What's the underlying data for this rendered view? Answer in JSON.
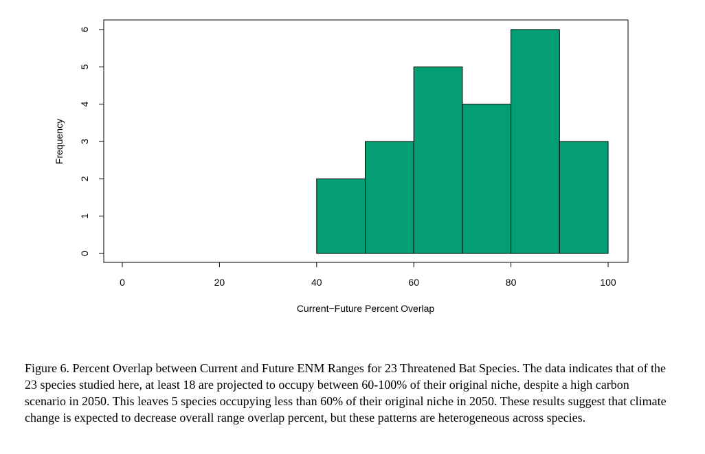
{
  "chart_data": {
    "type": "bar",
    "subtype": "histogram",
    "bins": [
      [
        40,
        50
      ],
      [
        50,
        60
      ],
      [
        60,
        70
      ],
      [
        70,
        80
      ],
      [
        80,
        90
      ],
      [
        90,
        100
      ]
    ],
    "values": [
      2,
      3,
      5,
      4,
      6,
      3
    ],
    "xlabel": "Current−Future Percent Overlap",
    "ylabel": "Frequency",
    "xlim": [
      0,
      100
    ],
    "ylim": [
      0,
      6
    ],
    "xticks": [
      0,
      20,
      40,
      60,
      80,
      100
    ],
    "yticks": [
      0,
      1,
      2,
      3,
      4,
      5,
      6
    ],
    "grid": false,
    "bar_color": "#039e74",
    "bar_edge_color": "#000000"
  },
  "caption": "Figure 6. Percent Overlap between Current and Future ENM Ranges for 23 Threatened Bat Species. The data indicates that of the 23 species studied here, at least 18 are projected to occupy between 60-100% of their original niche, despite a high carbon scenario in 2050. This leaves 5 species occupying less than 60% of their original niche in 2050. These results suggest that climate change is expected to decrease overall range overlap percent, but these patterns are heterogeneous across species."
}
